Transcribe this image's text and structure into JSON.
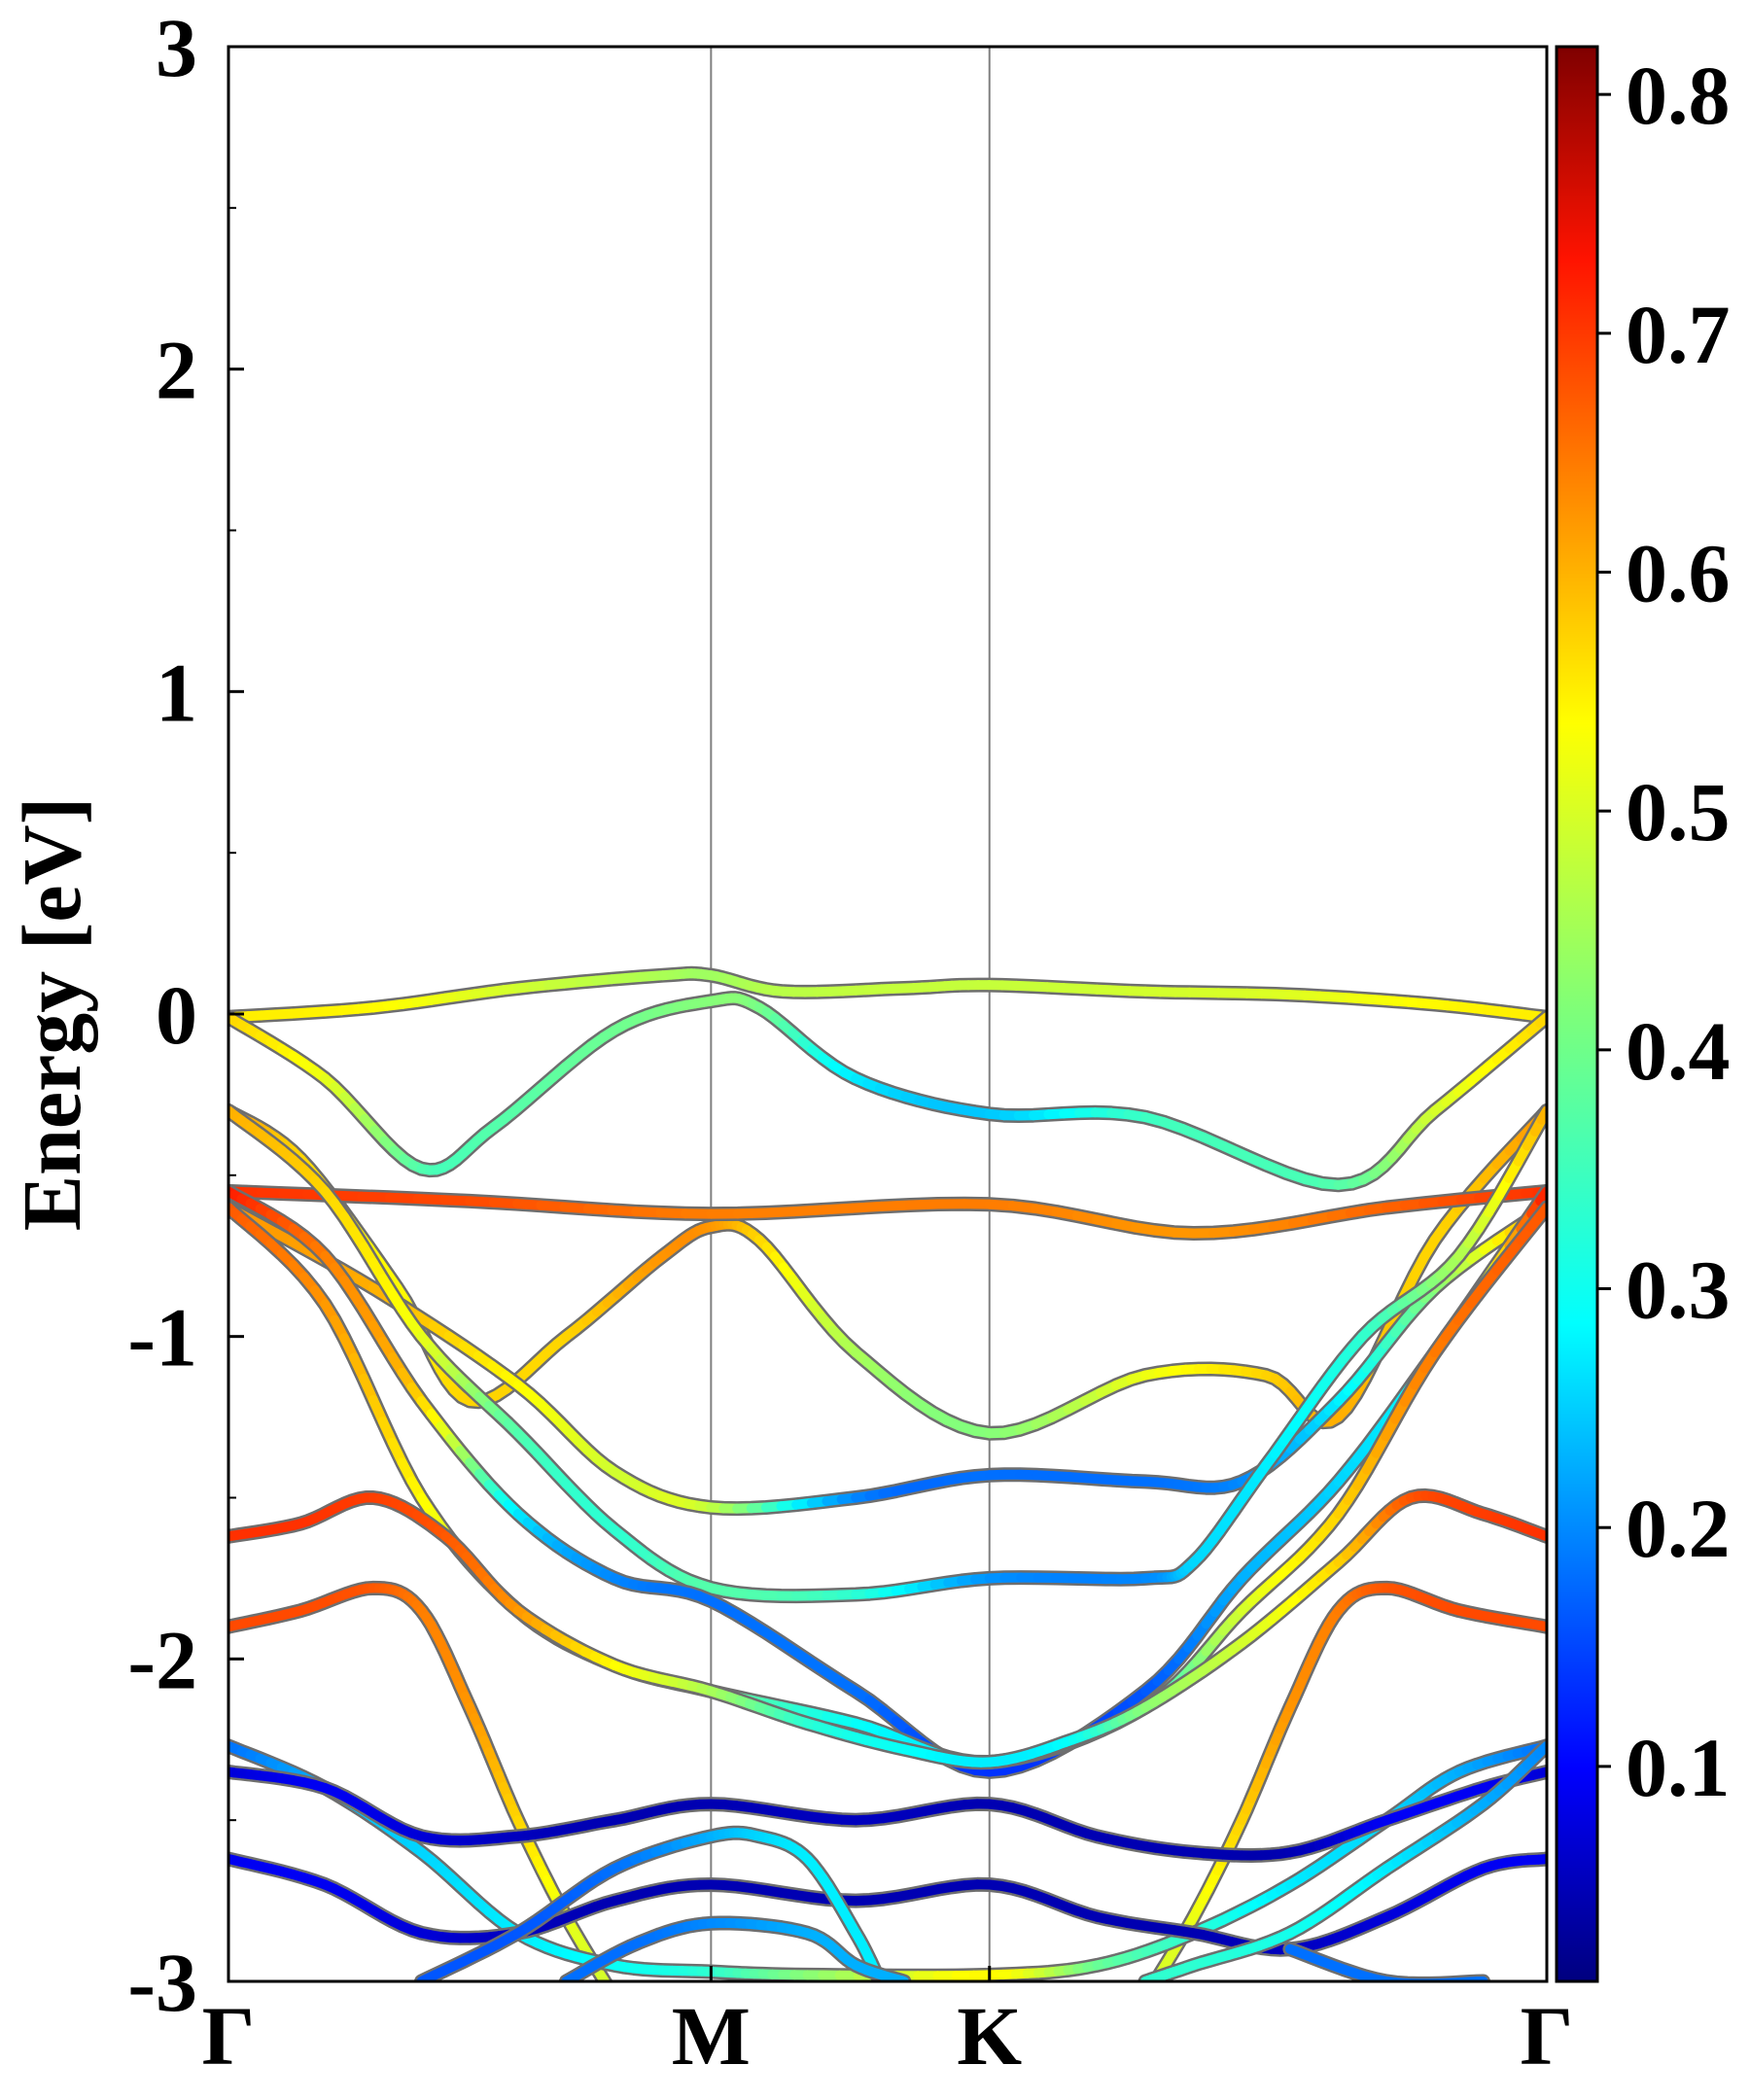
{
  "chart_data": {
    "type": "line",
    "title": "",
    "ylabel": "Energy [eV]",
    "xlabel": "",
    "ylim": [
      -3,
      3
    ],
    "y_ticks": [
      -3,
      -2,
      -1,
      0,
      1,
      2,
      3
    ],
    "y_tick_labels": [
      "-3",
      "-2",
      "-1",
      "0",
      "1",
      "2",
      "3"
    ],
    "k_path": {
      "labels": [
        "Γ",
        "M",
        "K",
        "Γ"
      ],
      "positions": [
        0,
        1,
        1.577,
        2.732
      ]
    },
    "colorbar": {
      "colormap": "jet",
      "range": [
        0.01,
        0.82
      ],
      "tick_values": [
        0.1,
        0.2,
        0.3,
        0.4,
        0.5,
        0.6,
        0.7,
        0.8
      ],
      "tick_labels": [
        "0.1",
        "0.2",
        "0.3",
        "0.4",
        "0.5",
        "0.6",
        "0.7",
        "0.8"
      ]
    },
    "colors": {
      "axis": "#000000",
      "high_symmetry_line": "#808080",
      "band_outline": "#6e6e6e"
    },
    "series": [
      {
        "points": [
          [
            0,
            -0.01,
            0.53
          ],
          [
            0.3,
            0.02,
            0.52
          ],
          [
            0.6,
            0.08,
            0.48
          ],
          [
            0.9,
            0.12,
            0.45
          ],
          [
            1.0,
            0.12,
            0.44
          ],
          [
            1.15,
            0.07,
            0.46
          ],
          [
            1.4,
            0.08,
            0.47
          ],
          [
            1.577,
            0.09,
            0.47
          ],
          [
            1.9,
            0.07,
            0.48
          ],
          [
            2.2,
            0.06,
            0.49
          ],
          [
            2.5,
            0.03,
            0.52
          ],
          [
            2.732,
            -0.01,
            0.53
          ]
        ]
      },
      {
        "points": [
          [
            0,
            -0.01,
            0.55
          ],
          [
            0.2,
            -0.2,
            0.5
          ],
          [
            0.4,
            -0.48,
            0.38
          ],
          [
            0.55,
            -0.35,
            0.38
          ],
          [
            0.8,
            -0.05,
            0.4
          ],
          [
            1.0,
            0.04,
            0.42
          ],
          [
            1.1,
            0.02,
            0.41
          ],
          [
            1.3,
            -0.2,
            0.3
          ],
          [
            1.577,
            -0.31,
            0.27
          ],
          [
            1.9,
            -0.32,
            0.36
          ],
          [
            2.3,
            -0.53,
            0.38
          ],
          [
            2.5,
            -0.3,
            0.48
          ],
          [
            2.732,
            -0.01,
            0.55
          ]
        ]
      },
      {
        "points": [
          [
            0,
            -0.3,
            0.6
          ],
          [
            0.15,
            -0.45,
            0.55
          ],
          [
            0.35,
            -0.85,
            0.52
          ],
          [
            0.5,
            -1.2,
            0.55
          ],
          [
            0.7,
            -1.0,
            0.55
          ],
          [
            0.9,
            -0.75,
            0.6
          ],
          [
            1.0,
            -0.66,
            0.6
          ],
          [
            1.1,
            -0.7,
            0.55
          ],
          [
            1.3,
            -1.05,
            0.45
          ],
          [
            1.577,
            -1.3,
            0.42
          ],
          [
            1.9,
            -1.12,
            0.5
          ],
          [
            2.15,
            -1.12,
            0.55
          ],
          [
            2.3,
            -1.25,
            0.58
          ],
          [
            2.5,
            -0.7,
            0.55
          ],
          [
            2.732,
            -0.3,
            0.6
          ]
        ]
      },
      {
        "points": [
          [
            0,
            -0.55,
            0.68
          ],
          [
            0.5,
            -0.58,
            0.66
          ],
          [
            1.0,
            -0.62,
            0.62
          ],
          [
            1.577,
            -0.59,
            0.62
          ],
          [
            2.0,
            -0.68,
            0.6
          ],
          [
            2.4,
            -0.6,
            0.64
          ],
          [
            2.732,
            -0.55,
            0.68
          ]
        ]
      },
      {
        "points": [
          [
            0,
            -0.6,
            0.6
          ],
          [
            0.3,
            -0.85,
            0.58
          ],
          [
            0.6,
            -1.15,
            0.52
          ],
          [
            0.8,
            -1.42,
            0.48
          ],
          [
            1.0,
            -1.53,
            0.47
          ],
          [
            1.3,
            -1.5,
            0.22
          ],
          [
            1.577,
            -1.43,
            0.2
          ],
          [
            1.9,
            -1.45,
            0.2
          ],
          [
            2.1,
            -1.45,
            0.22
          ],
          [
            2.3,
            -1.2,
            0.3
          ],
          [
            2.5,
            -0.85,
            0.42
          ],
          [
            2.732,
            -0.6,
            0.6
          ]
        ]
      },
      {
        "points": [
          [
            0,
            -0.3,
            0.58
          ],
          [
            0.2,
            -0.55,
            0.55
          ],
          [
            0.4,
            -1.0,
            0.5
          ],
          [
            0.6,
            -1.3,
            0.38
          ],
          [
            0.8,
            -1.6,
            0.35
          ],
          [
            1.0,
            -1.78,
            0.38
          ],
          [
            1.3,
            -1.8,
            0.35
          ],
          [
            1.577,
            -1.75,
            0.23
          ],
          [
            1.9,
            -1.75,
            0.22
          ],
          [
            2.0,
            -1.7,
            0.28
          ],
          [
            2.15,
            -1.4,
            0.3
          ],
          [
            2.35,
            -1.0,
            0.35
          ],
          [
            2.55,
            -0.75,
            0.45
          ],
          [
            2.732,
            -0.3,
            0.58
          ]
        ]
      },
      {
        "points": [
          [
            0,
            -0.55,
            0.7
          ],
          [
            0.2,
            -0.75,
            0.62
          ],
          [
            0.4,
            -1.2,
            0.55
          ],
          [
            0.6,
            -1.55,
            0.3
          ],
          [
            0.8,
            -1.75,
            0.22
          ],
          [
            1.0,
            -1.82,
            0.2
          ],
          [
            1.3,
            -2.1,
            0.2
          ],
          [
            1.577,
            -2.35,
            0.15
          ],
          [
            1.9,
            -2.1,
            0.18
          ],
          [
            2.1,
            -1.75,
            0.25
          ],
          [
            2.3,
            -1.45,
            0.28
          ],
          [
            2.5,
            -1.05,
            0.35
          ],
          [
            2.732,
            -0.55,
            0.7
          ]
        ]
      },
      {
        "points": [
          [
            0,
            -0.6,
            0.65
          ],
          [
            0.2,
            -0.9,
            0.6
          ],
          [
            0.4,
            -1.5,
            0.52
          ],
          [
            0.6,
            -1.85,
            0.45
          ],
          [
            0.8,
            -2.02,
            0.42
          ],
          [
            1.0,
            -2.1,
            0.4
          ],
          [
            1.3,
            -2.2,
            0.32
          ],
          [
            1.577,
            -2.32,
            0.3
          ],
          [
            1.9,
            -2.15,
            0.35
          ],
          [
            2.1,
            -1.85,
            0.48
          ],
          [
            2.3,
            -1.55,
            0.55
          ],
          [
            2.5,
            -1.05,
            0.62
          ],
          [
            2.732,
            -0.6,
            0.65
          ]
        ]
      },
      {
        "points": [
          [
            0,
            -1.62,
            0.68
          ],
          [
            0.15,
            -1.58,
            0.68
          ],
          [
            0.3,
            -1.5,
            0.67
          ],
          [
            0.45,
            -1.62,
            0.65
          ],
          [
            0.6,
            -1.85,
            0.6
          ],
          [
            0.8,
            -2.02,
            0.52
          ],
          [
            1.0,
            -2.1,
            0.45
          ],
          [
            1.2,
            -2.2,
            0.35
          ],
          [
            1.4,
            -2.28,
            0.32
          ],
          [
            1.577,
            -2.32,
            0.3
          ],
          [
            1.75,
            -2.25,
            0.32
          ],
          [
            1.9,
            -2.15,
            0.42
          ],
          [
            2.1,
            -1.95,
            0.48
          ],
          [
            2.3,
            -1.7,
            0.55
          ],
          [
            2.45,
            -1.5,
            0.65
          ],
          [
            2.6,
            -1.55,
            0.67
          ],
          [
            2.732,
            -1.62,
            0.68
          ]
        ]
      },
      {
        "points": [
          [
            0,
            -1.9,
            0.66
          ],
          [
            0.15,
            -1.85,
            0.66
          ],
          [
            0.3,
            -1.78,
            0.65
          ],
          [
            0.4,
            -1.85,
            0.62
          ],
          [
            0.5,
            -2.15,
            0.6
          ],
          [
            0.6,
            -2.5,
            0.55
          ],
          [
            0.7,
            -2.8,
            0.5
          ],
          [
            0.8,
            -3.05,
            0.48
          ]
        ]
      },
      {
        "points": [
          [
            1.9,
            -3.05,
            0.48
          ],
          [
            2.0,
            -2.8,
            0.5
          ],
          [
            2.1,
            -2.5,
            0.55
          ],
          [
            2.2,
            -2.15,
            0.6
          ],
          [
            2.3,
            -1.85,
            0.62
          ],
          [
            2.4,
            -1.78,
            0.65
          ],
          [
            2.55,
            -1.85,
            0.66
          ],
          [
            2.732,
            -1.9,
            0.66
          ]
        ]
      },
      {
        "points": [
          [
            0,
            -2.27,
            0.2
          ],
          [
            0.2,
            -2.4,
            0.25
          ],
          [
            0.4,
            -2.6,
            0.28
          ],
          [
            0.6,
            -2.85,
            0.3
          ],
          [
            0.8,
            -2.95,
            0.32
          ],
          [
            1.0,
            -2.97,
            0.35
          ],
          [
            1.2,
            -2.98,
            0.42
          ],
          [
            1.577,
            -2.98,
            0.52
          ],
          [
            1.8,
            -2.95,
            0.4
          ],
          [
            2.0,
            -2.85,
            0.35
          ],
          [
            2.2,
            -2.7,
            0.3
          ],
          [
            2.4,
            -2.5,
            0.28
          ],
          [
            2.55,
            -2.35,
            0.25
          ],
          [
            2.732,
            -2.27,
            0.2
          ]
        ]
      },
      {
        "points": [
          [
            0,
            -2.35,
            0.08
          ],
          [
            0.2,
            -2.4,
            0.1
          ],
          [
            0.4,
            -2.55,
            0.08
          ],
          [
            0.6,
            -2.55,
            0.06
          ],
          [
            0.8,
            -2.5,
            0.05
          ],
          [
            1.0,
            -2.45,
            0.05
          ],
          [
            1.3,
            -2.5,
            0.06
          ],
          [
            1.577,
            -2.45,
            0.05
          ],
          [
            1.8,
            -2.55,
            0.05
          ],
          [
            2.0,
            -2.6,
            0.05
          ],
          [
            2.2,
            -2.6,
            0.05
          ],
          [
            2.4,
            -2.5,
            0.1
          ],
          [
            2.6,
            -2.4,
            0.1
          ],
          [
            2.732,
            -2.35,
            0.08
          ]
        ]
      },
      {
        "points": [
          [
            0,
            -2.62,
            0.1
          ],
          [
            0.2,
            -2.7,
            0.1
          ],
          [
            0.4,
            -2.85,
            0.08
          ],
          [
            0.6,
            -2.85,
            0.06
          ],
          [
            0.8,
            -2.75,
            0.05
          ],
          [
            1.0,
            -2.7,
            0.05
          ],
          [
            1.3,
            -2.75,
            0.05
          ],
          [
            1.577,
            -2.7,
            0.05
          ],
          [
            1.8,
            -2.8,
            0.05
          ],
          [
            2.0,
            -2.85,
            0.05
          ],
          [
            2.2,
            -2.9,
            0.06
          ],
          [
            2.4,
            -2.8,
            0.08
          ],
          [
            2.6,
            -2.65,
            0.1
          ],
          [
            2.732,
            -2.62,
            0.1
          ]
        ]
      },
      {
        "points": [
          [
            0.4,
            -3.0,
            0.18
          ],
          [
            0.6,
            -2.85,
            0.18
          ],
          [
            0.8,
            -2.65,
            0.2
          ],
          [
            1.0,
            -2.55,
            0.25
          ],
          [
            1.1,
            -2.55,
            0.28
          ],
          [
            1.2,
            -2.62,
            0.3
          ],
          [
            1.3,
            -2.85,
            0.3
          ],
          [
            1.35,
            -3.0,
            0.3
          ]
        ]
      },
      {
        "points": [
          [
            1.9,
            -3.0,
            0.35
          ],
          [
            2.0,
            -2.95,
            0.35
          ],
          [
            2.2,
            -2.85,
            0.33
          ],
          [
            2.4,
            -2.65,
            0.3
          ],
          [
            2.6,
            -2.45,
            0.25
          ],
          [
            2.732,
            -2.27,
            0.22
          ]
        ]
      },
      {
        "points": [
          [
            0.7,
            -3.0,
            0.2
          ],
          [
            0.85,
            -2.88,
            0.2
          ],
          [
            1.0,
            -2.82,
            0.22
          ],
          [
            1.2,
            -2.85,
            0.25
          ],
          [
            1.3,
            -2.95,
            0.25
          ],
          [
            1.4,
            -3.0,
            0.25
          ]
        ]
      },
      {
        "points": [
          [
            2.2,
            -2.9,
            0.2
          ],
          [
            2.4,
            -3.0,
            0.2
          ],
          [
            2.6,
            -3.0,
            0.2
          ]
        ]
      }
    ]
  }
}
